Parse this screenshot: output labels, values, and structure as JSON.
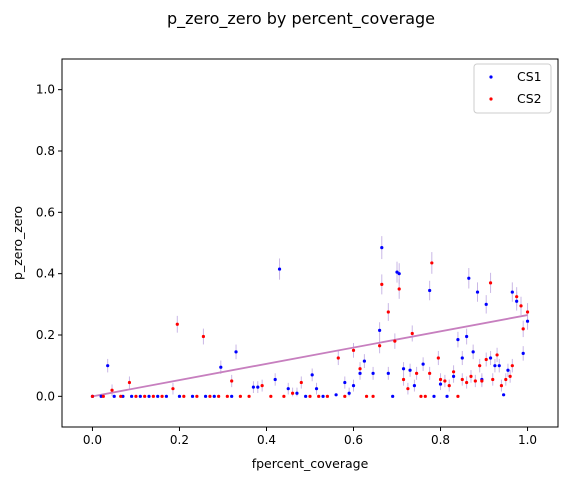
{
  "chart_data": {
    "type": "scatter",
    "title": "p_zero_zero by percent_coverage",
    "xlabel": "fpercent_coverage",
    "ylabel": "p_zero_zero",
    "xlim": [
      -0.07,
      1.07
    ],
    "ylim": [
      -0.1,
      1.1
    ],
    "xticks": [
      "0.0",
      "0.2",
      "0.4",
      "0.6",
      "0.8",
      "1.0"
    ],
    "yticks": [
      "0.0",
      "0.2",
      "0.4",
      "0.6",
      "0.8",
      "1.0"
    ],
    "grid": false,
    "legend_position": "top-right",
    "trend_line": {
      "x": [
        0.0,
        1.0
      ],
      "y": [
        0.0,
        0.265
      ],
      "color": "#c77fbf"
    },
    "errorbar_color": "#c9b7e6",
    "series": [
      {
        "name": "CS1",
        "color": "#0000ff",
        "points": [
          [
            0.0,
            0.0
          ],
          [
            0.02,
            0.0
          ],
          [
            0.035,
            0.1
          ],
          [
            0.05,
            0.0
          ],
          [
            0.07,
            0.0
          ],
          [
            0.09,
            0.0
          ],
          [
            0.11,
            0.0
          ],
          [
            0.13,
            0.0
          ],
          [
            0.15,
            0.0
          ],
          [
            0.17,
            0.0
          ],
          [
            0.2,
            0.0
          ],
          [
            0.23,
            0.0
          ],
          [
            0.26,
            0.0
          ],
          [
            0.28,
            0.0
          ],
          [
            0.295,
            0.095
          ],
          [
            0.32,
            0.0
          ],
          [
            0.33,
            0.145
          ],
          [
            0.37,
            0.03
          ],
          [
            0.38,
            0.03
          ],
          [
            0.42,
            0.055
          ],
          [
            0.43,
            0.415
          ],
          [
            0.45,
            0.025
          ],
          [
            0.47,
            0.01
          ],
          [
            0.49,
            0.0
          ],
          [
            0.505,
            0.07
          ],
          [
            0.515,
            0.025
          ],
          [
            0.53,
            0.0
          ],
          [
            0.56,
            0.005
          ],
          [
            0.58,
            0.045
          ],
          [
            0.59,
            0.01
          ],
          [
            0.6,
            0.035
          ],
          [
            0.615,
            0.075
          ],
          [
            0.625,
            0.115
          ],
          [
            0.645,
            0.075
          ],
          [
            0.66,
            0.215
          ],
          [
            0.665,
            0.485
          ],
          [
            0.68,
            0.075
          ],
          [
            0.69,
            0.0
          ],
          [
            0.7,
            0.405
          ],
          [
            0.705,
            0.4
          ],
          [
            0.715,
            0.09
          ],
          [
            0.73,
            0.085
          ],
          [
            0.74,
            0.035
          ],
          [
            0.76,
            0.105
          ],
          [
            0.775,
            0.345
          ],
          [
            0.785,
            0.0
          ],
          [
            0.8,
            0.04
          ],
          [
            0.815,
            0.0
          ],
          [
            0.83,
            0.065
          ],
          [
            0.84,
            0.185
          ],
          [
            0.85,
            0.125
          ],
          [
            0.86,
            0.195
          ],
          [
            0.865,
            0.385
          ],
          [
            0.875,
            0.145
          ],
          [
            0.885,
            0.34
          ],
          [
            0.895,
            0.055
          ],
          [
            0.905,
            0.3
          ],
          [
            0.915,
            0.125
          ],
          [
            0.925,
            0.1
          ],
          [
            0.935,
            0.1
          ],
          [
            0.945,
            0.005
          ],
          [
            0.955,
            0.085
          ],
          [
            0.965,
            0.34
          ],
          [
            0.975,
            0.31
          ],
          [
            0.99,
            0.14
          ],
          [
            1.0,
            0.245
          ]
        ]
      },
      {
        "name": "CS2",
        "color": "#ff0000",
        "points": [
          [
            0.0,
            0.0
          ],
          [
            0.025,
            0.0
          ],
          [
            0.045,
            0.02
          ],
          [
            0.065,
            0.0
          ],
          [
            0.085,
            0.045
          ],
          [
            0.1,
            0.0
          ],
          [
            0.12,
            0.0
          ],
          [
            0.14,
            0.0
          ],
          [
            0.16,
            0.0
          ],
          [
            0.185,
            0.025
          ],
          [
            0.195,
            0.235
          ],
          [
            0.21,
            0.0
          ],
          [
            0.24,
            0.0
          ],
          [
            0.255,
            0.195
          ],
          [
            0.27,
            0.0
          ],
          [
            0.29,
            0.0
          ],
          [
            0.31,
            0.0
          ],
          [
            0.32,
            0.05
          ],
          [
            0.34,
            0.0
          ],
          [
            0.36,
            0.0
          ],
          [
            0.39,
            0.035
          ],
          [
            0.41,
            0.0
          ],
          [
            0.44,
            0.0
          ],
          [
            0.46,
            0.01
          ],
          [
            0.48,
            0.045
          ],
          [
            0.5,
            0.0
          ],
          [
            0.52,
            0.0
          ],
          [
            0.54,
            0.0
          ],
          [
            0.565,
            0.125
          ],
          [
            0.58,
            0.0
          ],
          [
            0.6,
            0.15
          ],
          [
            0.615,
            0.09
          ],
          [
            0.63,
            0.0
          ],
          [
            0.645,
            0.0
          ],
          [
            0.66,
            0.165
          ],
          [
            0.665,
            0.365
          ],
          [
            0.68,
            0.275
          ],
          [
            0.695,
            0.18
          ],
          [
            0.705,
            0.35
          ],
          [
            0.715,
            0.055
          ],
          [
            0.725,
            0.025
          ],
          [
            0.735,
            0.205
          ],
          [
            0.745,
            0.075
          ],
          [
            0.755,
            0.0
          ],
          [
            0.765,
            0.0
          ],
          [
            0.775,
            0.075
          ],
          [
            0.78,
            0.435
          ],
          [
            0.795,
            0.125
          ],
          [
            0.8,
            0.055
          ],
          [
            0.81,
            0.05
          ],
          [
            0.82,
            0.035
          ],
          [
            0.83,
            0.08
          ],
          [
            0.84,
            0.0
          ],
          [
            0.85,
            0.055
          ],
          [
            0.86,
            0.045
          ],
          [
            0.87,
            0.065
          ],
          [
            0.88,
            0.05
          ],
          [
            0.89,
            0.1
          ],
          [
            0.895,
            0.05
          ],
          [
            0.905,
            0.12
          ],
          [
            0.915,
            0.37
          ],
          [
            0.92,
            0.055
          ],
          [
            0.93,
            0.135
          ],
          [
            0.94,
            0.035
          ],
          [
            0.95,
            0.055
          ],
          [
            0.96,
            0.065
          ],
          [
            0.965,
            0.1
          ],
          [
            0.975,
            0.325
          ],
          [
            0.985,
            0.295
          ],
          [
            0.99,
            0.22
          ],
          [
            1.0,
            0.275
          ]
        ]
      }
    ]
  }
}
